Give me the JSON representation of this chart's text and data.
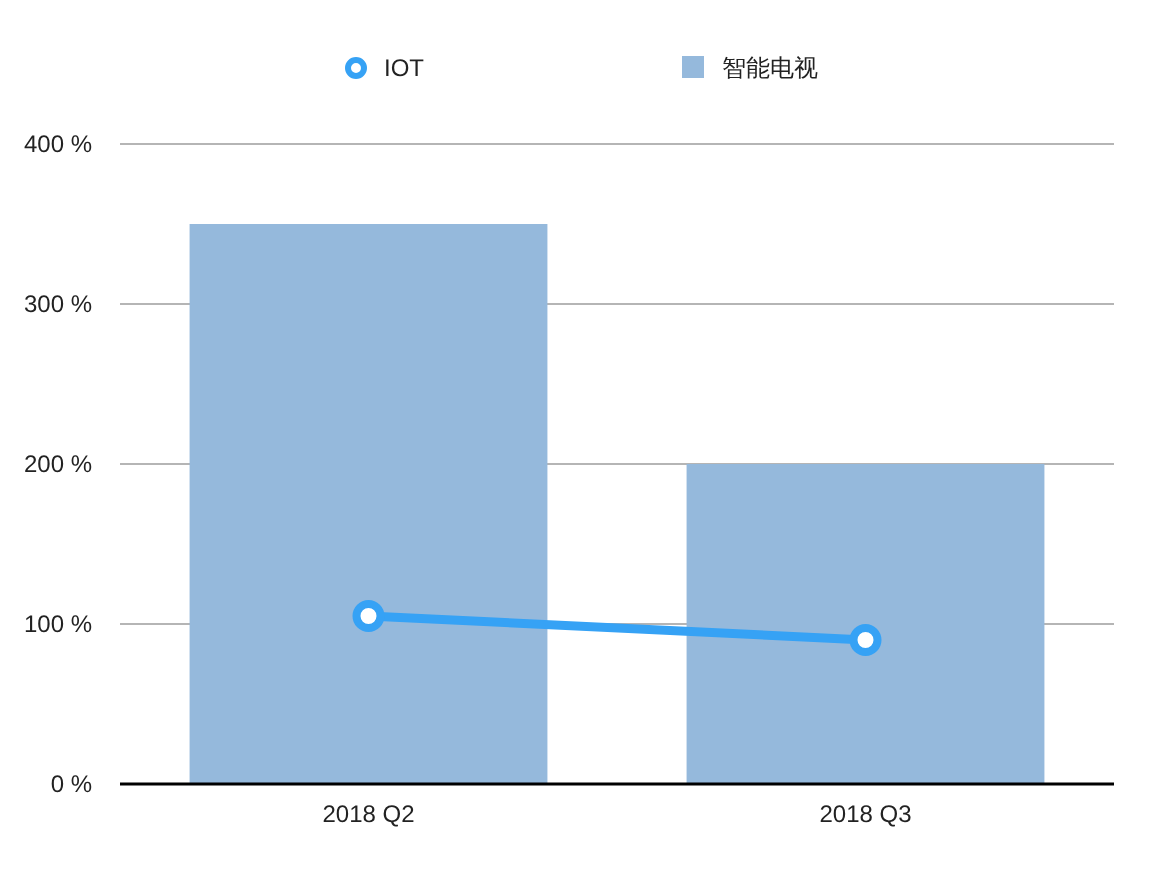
{
  "chart_data": {
    "type": "bar",
    "categories": [
      "2018 Q2",
      "2018 Q3"
    ],
    "series": [
      {
        "name": "IOT",
        "type": "line",
        "color": "#36a2f5",
        "values": [
          105,
          90
        ]
      },
      {
        "name": "智能电视",
        "color": "#95b9dc",
        "values": [
          350,
          200
        ]
      }
    ],
    "ylim": [
      0,
      400
    ],
    "yticks": [
      {
        "value": 0,
        "label": "0 %"
      },
      {
        "value": 100,
        "label": "100 %"
      },
      {
        "value": 200,
        "label": "200 %"
      },
      {
        "value": 300,
        "label": "300 %"
      },
      {
        "value": 400,
        "label": "400 %"
      }
    ],
    "grid": "y",
    "legend": "top",
    "marker": "circle",
    "line_style": "solid"
  }
}
